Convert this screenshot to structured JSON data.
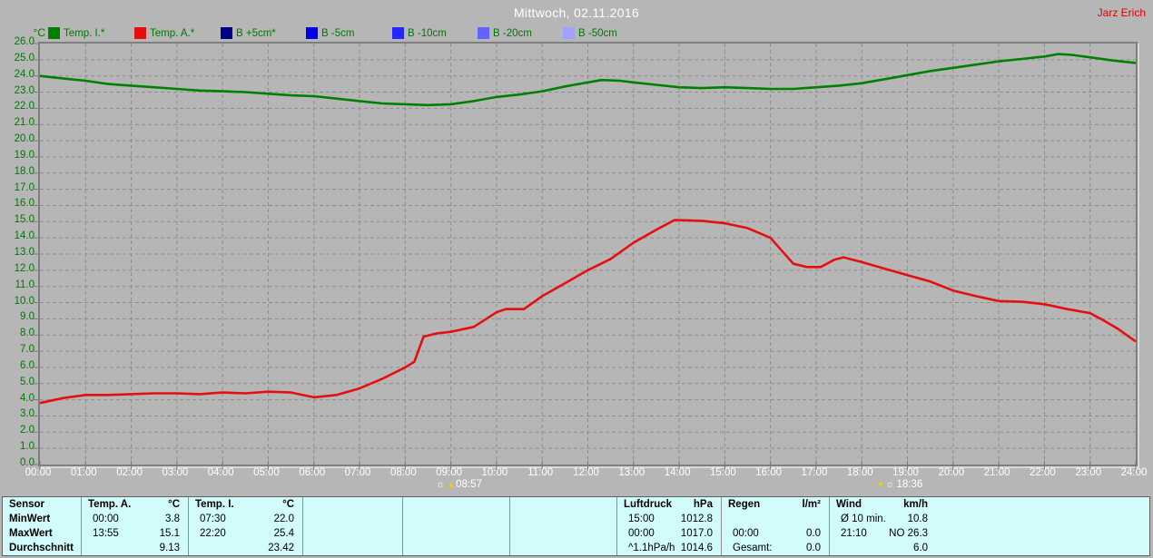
{
  "header": {
    "title": "Mittwoch, 02.11.2016",
    "author": "Jarz Erich"
  },
  "chart_data": {
    "type": "line",
    "title": "Mittwoch, 02.11.2016",
    "xlabel": "",
    "ylabel": "°C",
    "ylim": [
      0,
      26
    ],
    "xlim": [
      0,
      24
    ],
    "y_tick_step": 1.0,
    "grid": true,
    "legend_position": "top",
    "x_tick_labels": [
      "00:00",
      "01:00",
      "02:00",
      "03:00",
      "04:00",
      "05:00",
      "06:00",
      "07:00",
      "08:00",
      "09:00",
      "10:00",
      "11:00",
      "12:00",
      "13:00",
      "14:00",
      "15:00",
      "16:00",
      "17:00",
      "18:00",
      "19:00",
      "20:00",
      "21:00",
      "22:00",
      "23:00",
      "24:00"
    ],
    "series": [
      {
        "name": "Temp. I.*",
        "color": "#008000",
        "points": [
          [
            0,
            24.0
          ],
          [
            0.5,
            23.85
          ],
          [
            1,
            23.7
          ],
          [
            1.5,
            23.5
          ],
          [
            2,
            23.4
          ],
          [
            2.5,
            23.3
          ],
          [
            3,
            23.2
          ],
          [
            3.5,
            23.1
          ],
          [
            4,
            23.05
          ],
          [
            4.5,
            23.0
          ],
          [
            5,
            22.9
          ],
          [
            5.5,
            22.8
          ],
          [
            6,
            22.75
          ],
          [
            6.5,
            22.6
          ],
          [
            7,
            22.45
          ],
          [
            7.5,
            22.3
          ],
          [
            8,
            22.25
          ],
          [
            8.5,
            22.2
          ],
          [
            9,
            22.25
          ],
          [
            9.5,
            22.45
          ],
          [
            10,
            22.7
          ],
          [
            10.5,
            22.85
          ],
          [
            11,
            23.05
          ],
          [
            11.5,
            23.35
          ],
          [
            12,
            23.6
          ],
          [
            12.3,
            23.75
          ],
          [
            12.7,
            23.7
          ],
          [
            13,
            23.6
          ],
          [
            13.5,
            23.45
          ],
          [
            14,
            23.3
          ],
          [
            14.5,
            23.25
          ],
          [
            15,
            23.3
          ],
          [
            15.5,
            23.25
          ],
          [
            16,
            23.2
          ],
          [
            16.5,
            23.2
          ],
          [
            17,
            23.3
          ],
          [
            17.5,
            23.4
          ],
          [
            18,
            23.55
          ],
          [
            18.5,
            23.8
          ],
          [
            19,
            24.05
          ],
          [
            19.5,
            24.3
          ],
          [
            20,
            24.5
          ],
          [
            20.5,
            24.7
          ],
          [
            21,
            24.9
          ],
          [
            21.5,
            25.05
          ],
          [
            22,
            25.2
          ],
          [
            22.3,
            25.35
          ],
          [
            22.6,
            25.3
          ],
          [
            23,
            25.15
          ],
          [
            23.5,
            24.95
          ],
          [
            24,
            24.8
          ]
        ]
      },
      {
        "name": "Temp. A.*",
        "color": "#e60f0f",
        "points": [
          [
            0,
            3.8
          ],
          [
            0.5,
            4.1
          ],
          [
            1,
            4.3
          ],
          [
            1.5,
            4.3
          ],
          [
            2,
            4.35
          ],
          [
            2.5,
            4.4
          ],
          [
            3,
            4.4
          ],
          [
            3.5,
            4.35
          ],
          [
            4,
            4.45
          ],
          [
            4.5,
            4.4
          ],
          [
            5,
            4.5
          ],
          [
            5.5,
            4.45
          ],
          [
            6,
            4.15
          ],
          [
            6.5,
            4.3
          ],
          [
            7,
            4.7
          ],
          [
            7.5,
            5.3
          ],
          [
            8,
            6.0
          ],
          [
            8.2,
            6.35
          ],
          [
            8.4,
            7.9
          ],
          [
            8.7,
            8.1
          ],
          [
            9,
            8.2
          ],
          [
            9.5,
            8.5
          ],
          [
            10,
            9.4
          ],
          [
            10.2,
            9.6
          ],
          [
            10.6,
            9.6
          ],
          [
            11,
            10.4
          ],
          [
            11.5,
            11.2
          ],
          [
            12,
            12.0
          ],
          [
            12.5,
            12.7
          ],
          [
            13,
            13.7
          ],
          [
            13.5,
            14.5
          ],
          [
            13.9,
            15.1
          ],
          [
            14.5,
            15.05
          ],
          [
            15,
            14.9
          ],
          [
            15.5,
            14.6
          ],
          [
            16,
            14.0
          ],
          [
            16.5,
            12.4
          ],
          [
            16.8,
            12.2
          ],
          [
            17.1,
            12.2
          ],
          [
            17.4,
            12.65
          ],
          [
            17.6,
            12.8
          ],
          [
            18,
            12.5
          ],
          [
            18.5,
            12.1
          ],
          [
            19,
            11.7
          ],
          [
            19.5,
            11.3
          ],
          [
            20,
            10.75
          ],
          [
            20.5,
            10.4
          ],
          [
            21,
            10.1
          ],
          [
            21.5,
            10.05
          ],
          [
            22,
            9.9
          ],
          [
            22.5,
            9.6
          ],
          [
            23,
            9.35
          ],
          [
            23.3,
            8.9
          ],
          [
            23.6,
            8.4
          ],
          [
            24,
            7.6
          ]
        ]
      },
      {
        "name": "B +5cm*",
        "color": "#000085",
        "points": []
      },
      {
        "name": "B -5cm",
        "color": "#0000e8",
        "points": []
      },
      {
        "name": "B -10cm",
        "color": "#2626ff",
        "points": []
      },
      {
        "name": "B -20cm",
        "color": "#6363ff",
        "points": []
      },
      {
        "name": "B -50cm",
        "color": "#a0a0ff",
        "points": []
      }
    ],
    "annotations": [
      {
        "type": "sunrise",
        "time": "08:57",
        "hour": 8.95
      },
      {
        "type": "sunset",
        "time": "18:36",
        "hour": 18.6
      }
    ]
  },
  "stats_table": {
    "label_column": {
      "header": "Sensor",
      "rows": [
        "MinWert",
        "MaxWert",
        "Durchschnitt"
      ]
    },
    "columns": [
      {
        "header": "Temp. A.",
        "unit": "°C",
        "rows": [
          [
            "00:00",
            "3.8"
          ],
          [
            "13:55",
            "15.1"
          ],
          [
            "",
            "9.13"
          ]
        ]
      },
      {
        "header": "Temp. I.",
        "unit": "°C",
        "rows": [
          [
            "07:30",
            "22.0"
          ],
          [
            "22:20",
            "25.4"
          ],
          [
            "",
            "23.42"
          ]
        ]
      },
      {
        "header": "",
        "unit": "",
        "rows": [
          [
            "",
            ""
          ],
          [
            "",
            ""
          ],
          [
            "",
            ""
          ]
        ]
      },
      {
        "header": "",
        "unit": "",
        "rows": [
          [
            "",
            ""
          ],
          [
            "",
            ""
          ],
          [
            "",
            ""
          ]
        ]
      },
      {
        "header": "",
        "unit": "",
        "rows": [
          [
            "",
            ""
          ],
          [
            "",
            ""
          ],
          [
            "",
            ""
          ]
        ]
      },
      {
        "header": "Luftdruck",
        "unit": "hPa",
        "rows": [
          [
            "15:00",
            "1012.8"
          ],
          [
            "00:00",
            "1017.0"
          ],
          [
            "^1.1hPa/h",
            "1014.6"
          ]
        ]
      },
      {
        "header": "Regen",
        "unit": "l/m²",
        "rows": [
          [
            "",
            ""
          ],
          [
            "00:00",
            "0.0"
          ],
          [
            "Gesamt:",
            "0.0"
          ]
        ]
      },
      {
        "header": "Wind",
        "unit": "km/h",
        "rows": [
          [
            "Ø 10 min.",
            "10.8"
          ],
          [
            "21:10",
            "NO 26.3"
          ],
          [
            "",
            "6.0"
          ]
        ]
      }
    ]
  }
}
